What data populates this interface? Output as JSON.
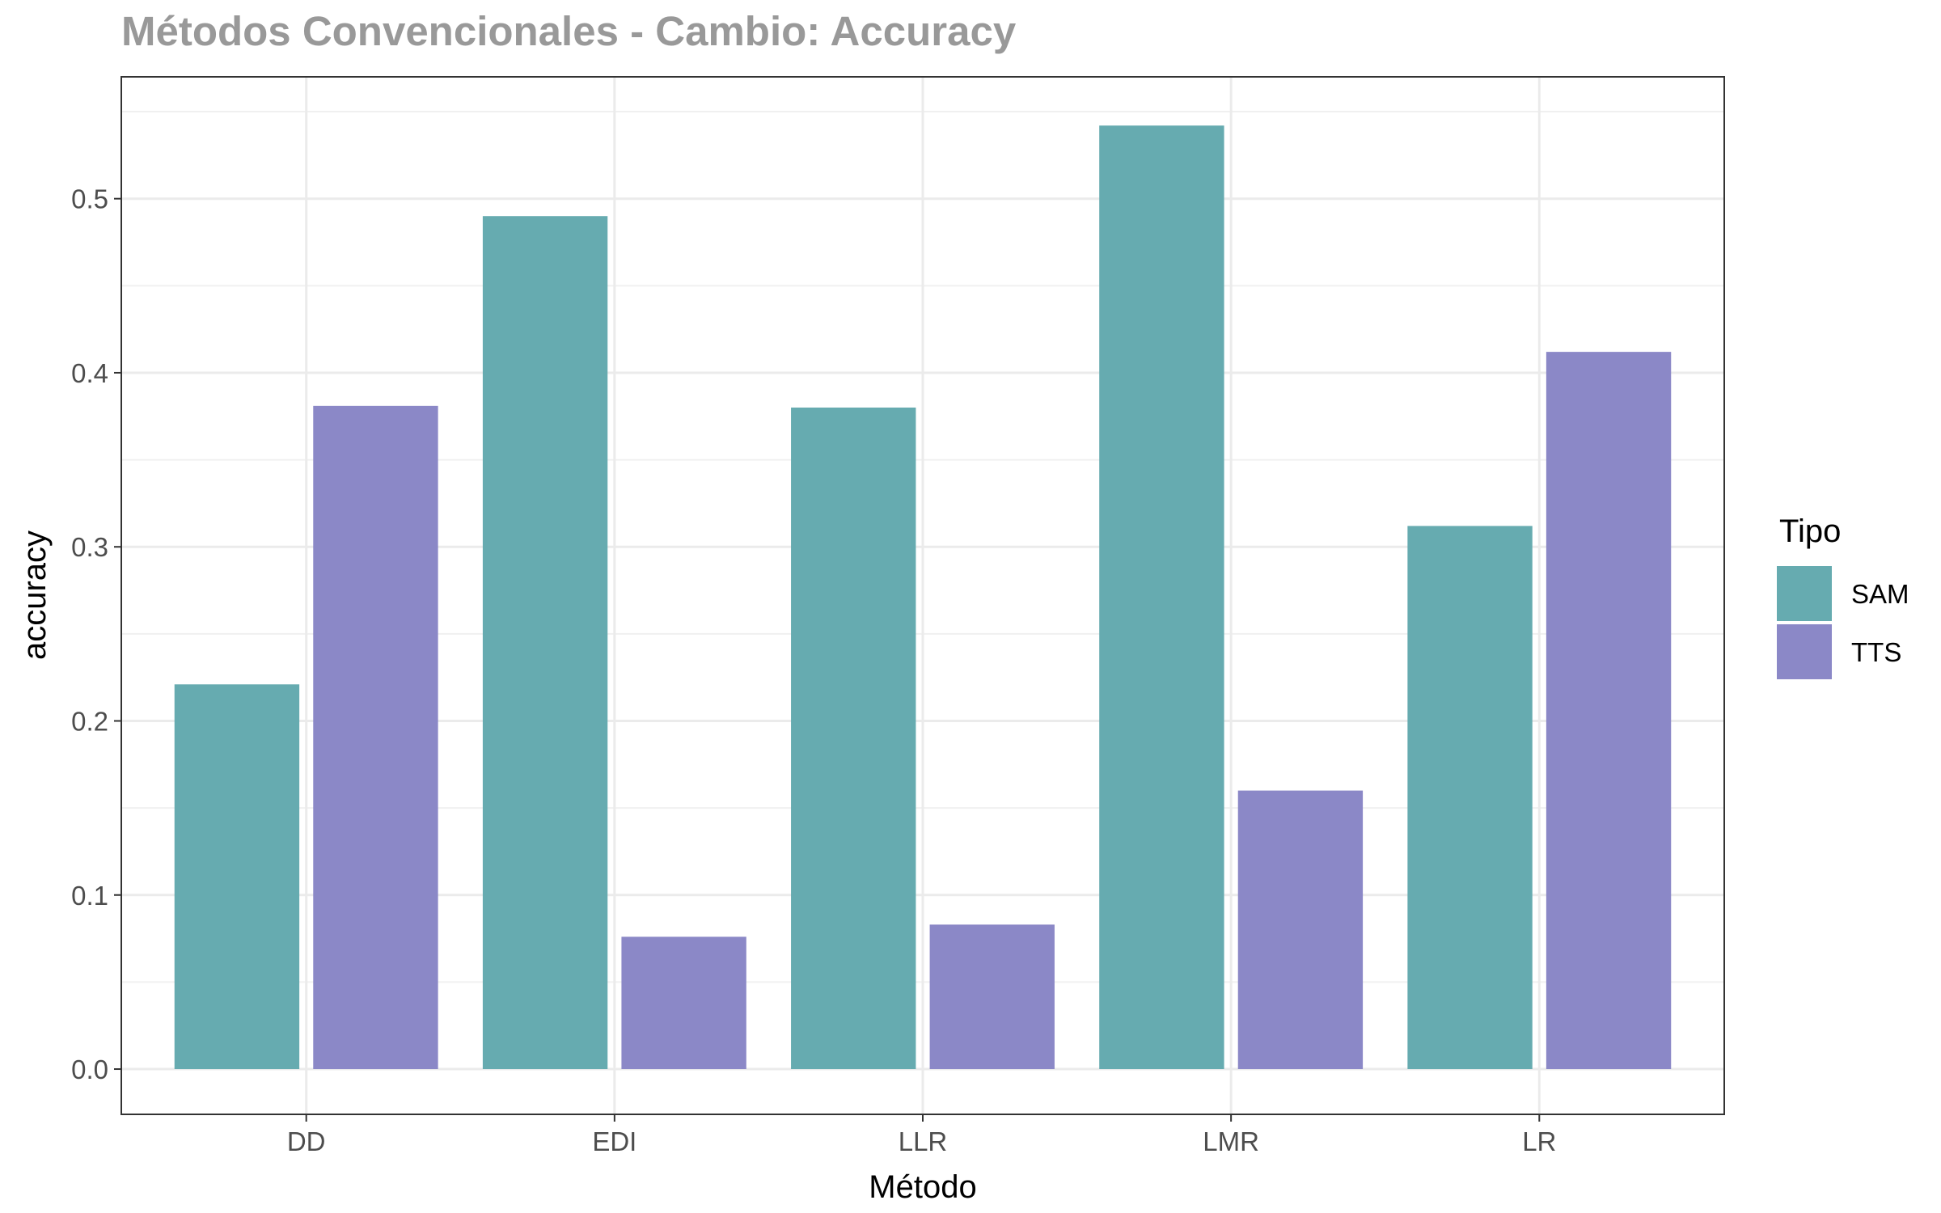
{
  "chart_data": {
    "type": "bar",
    "title": "Métodos Convencionales - Cambio: Accuracy",
    "xlabel": "Método",
    "ylabel": "accuracy",
    "categories": [
      "DD",
      "EDI",
      "LLR",
      "LMR",
      "LR"
    ],
    "series": [
      {
        "name": "SAM",
        "color": "#66abb0",
        "values": [
          0.221,
          0.49,
          0.38,
          0.542,
          0.312
        ]
      },
      {
        "name": "TTS",
        "color": "#8b88c7",
        "values": [
          0.381,
          0.076,
          0.083,
          0.16,
          0.412
        ]
      }
    ],
    "ylim": [
      -0.026,
      0.57
    ],
    "yticks": [
      0.0,
      0.1,
      0.2,
      0.3,
      0.4,
      0.5
    ],
    "ytick_labels": [
      "0.0",
      "0.1",
      "0.2",
      "0.3",
      "0.4",
      "0.5"
    ],
    "grid": true,
    "legend": {
      "title": "Tipo",
      "position": "right"
    }
  }
}
